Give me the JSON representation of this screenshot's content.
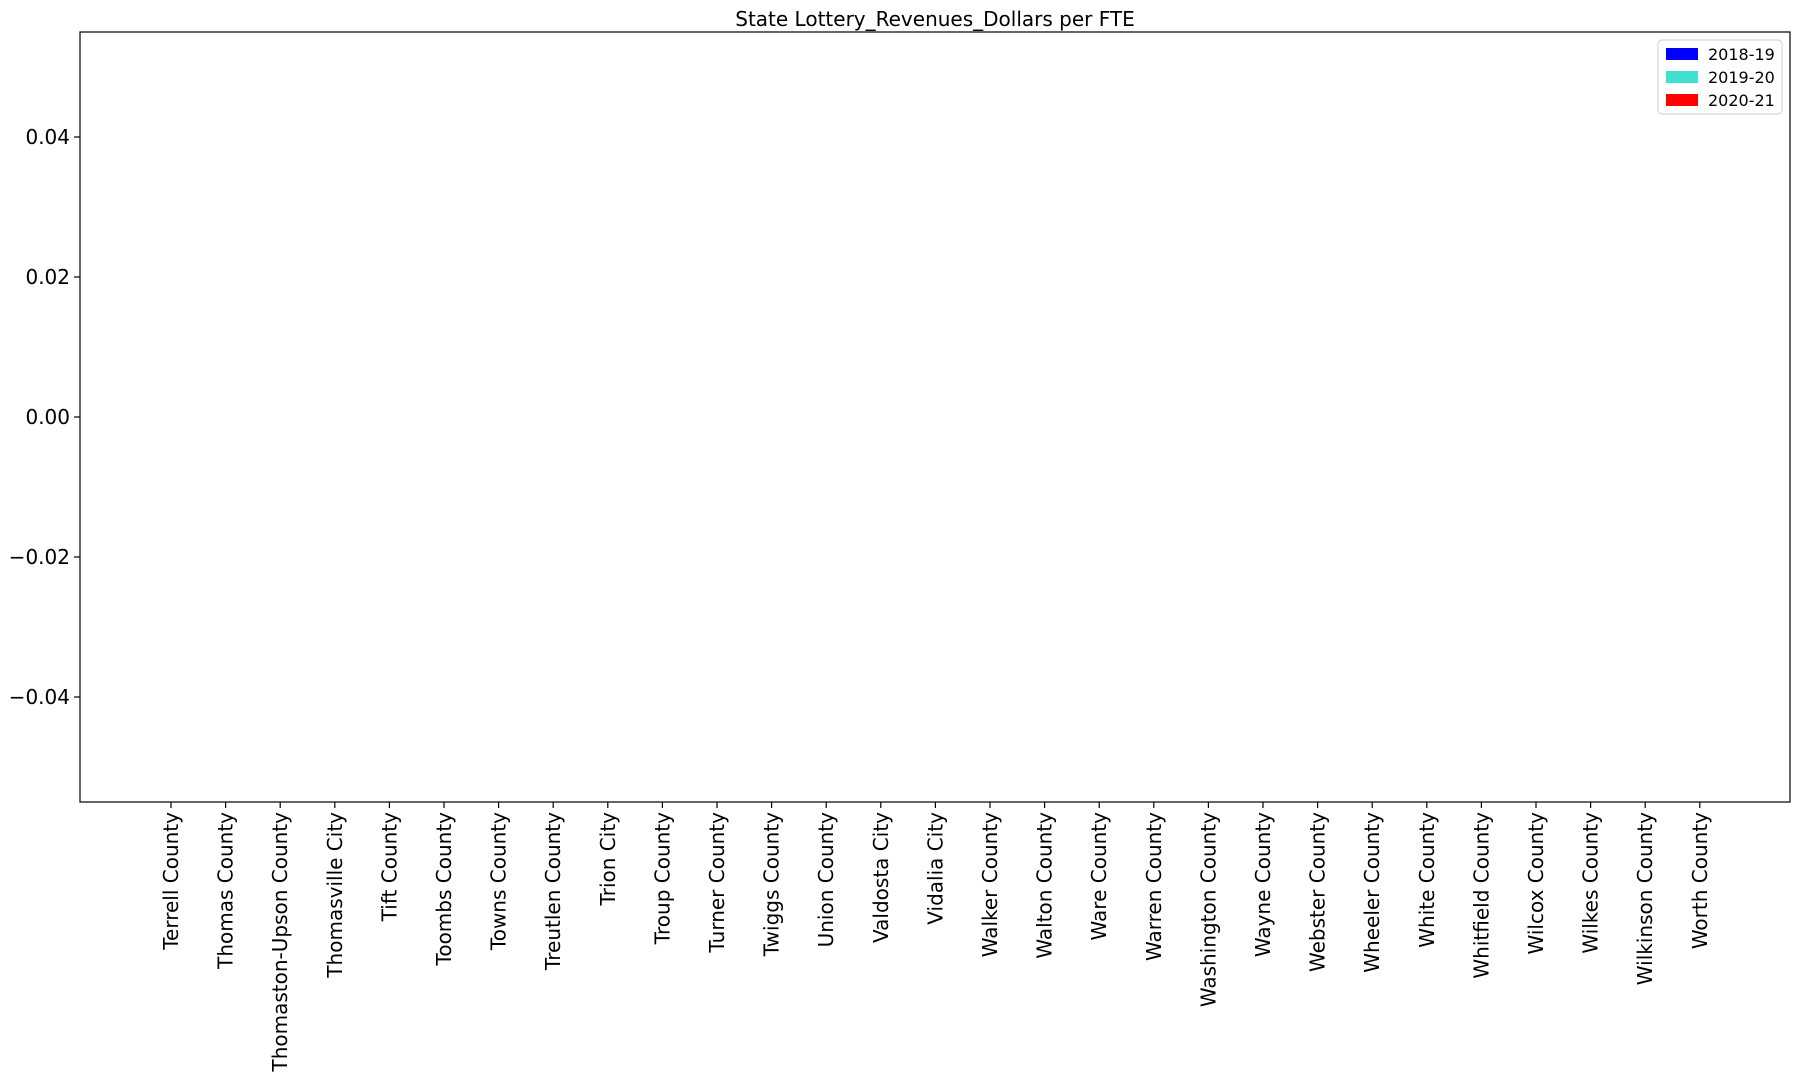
{
  "chart_data": {
    "type": "bar",
    "title": "State Lottery_Revenues_Dollars per FTE",
    "xlabel": "",
    "ylabel": "",
    "categories": [
      "Terrell County",
      "Thomas County",
      "Thomaston-Upson County",
      "Thomasville City",
      "Tift County",
      "Toombs County",
      "Towns County",
      "Treutlen County",
      "Trion City",
      "Troup County",
      "Turner County",
      "Twiggs County",
      "Union County",
      "Valdosta City",
      "Vidalia City",
      "Walker County",
      "Walton County",
      "Ware County",
      "Warren County",
      "Washington County",
      "Wayne County",
      "Webster County",
      "Wheeler County",
      "White County",
      "Whitfield County",
      "Wilcox County",
      "Wilkes County",
      "Wilkinson County",
      "Worth County"
    ],
    "series": [
      {
        "name": "2018-19",
        "color": "#0000ff",
        "values": [
          0,
          0,
          0,
          0,
          0,
          0,
          0,
          0,
          0,
          0,
          0,
          0,
          0,
          0,
          0,
          0,
          0,
          0,
          0,
          0,
          0,
          0,
          0,
          0,
          0,
          0,
          0,
          0,
          0
        ]
      },
      {
        "name": "2019-20",
        "color": "#40e0d0",
        "values": [
          0,
          0,
          0,
          0,
          0,
          0,
          0,
          0,
          0,
          0,
          0,
          0,
          0,
          0,
          0,
          0,
          0,
          0,
          0,
          0,
          0,
          0,
          0,
          0,
          0,
          0,
          0,
          0,
          0
        ]
      },
      {
        "name": "2020-21",
        "color": "#ff0000",
        "values": [
          0,
          0,
          0,
          0,
          0,
          0,
          0,
          0,
          0,
          0,
          0,
          0,
          0,
          0,
          0,
          0,
          0,
          0,
          0,
          0,
          0,
          0,
          0,
          0,
          0,
          0,
          0,
          0,
          0
        ]
      }
    ],
    "ylim": [
      -0.055,
      0.055
    ],
    "yticks": [
      -0.04,
      -0.02,
      0.0,
      0.02,
      0.04
    ],
    "ytick_labels": [
      "−0.04",
      "−0.02",
      "0.00",
      "0.02",
      "0.04"
    ],
    "grid": false,
    "legend_position": "top-right"
  }
}
